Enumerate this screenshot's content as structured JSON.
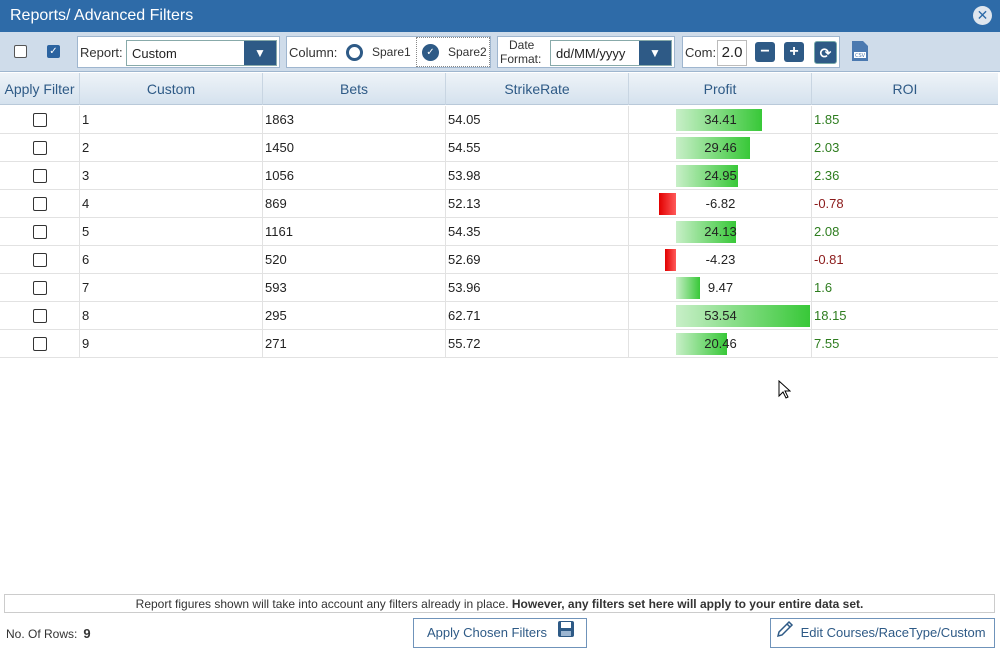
{
  "window": {
    "title": "Reports/ Advanced Filters"
  },
  "toolbar": {
    "report_label": "Report:",
    "report_value": "Custom",
    "column_label": "Column:",
    "spare1_label": "Spare1",
    "spare2_label": "Spare2",
    "date_label_1": "Date",
    "date_label_2": "Format:",
    "date_value": "dd/MM/yyyy",
    "com_label": "Com:",
    "com_value": "2.0",
    "selected_column": "Spare2"
  },
  "table": {
    "headers": [
      "Apply Filter",
      "Custom",
      "Bets",
      "StrikeRate",
      "Profit",
      "ROI"
    ],
    "rows": [
      {
        "custom": "1",
        "bets": "1863",
        "strike": "54.05",
        "profit": "34.41",
        "roi": "1.85"
      },
      {
        "custom": "2",
        "bets": "1450",
        "strike": "54.55",
        "profit": "29.46",
        "roi": "2.03"
      },
      {
        "custom": "3",
        "bets": "1056",
        "strike": "53.98",
        "profit": "24.95",
        "roi": "2.36"
      },
      {
        "custom": "4",
        "bets": "869",
        "strike": "52.13",
        "profit": "-6.82",
        "roi": "-0.78"
      },
      {
        "custom": "5",
        "bets": "1161",
        "strike": "54.35",
        "profit": "24.13",
        "roi": "2.08"
      },
      {
        "custom": "6",
        "bets": "520",
        "strike": "52.69",
        "profit": "-4.23",
        "roi": "-0.81"
      },
      {
        "custom": "7",
        "bets": "593",
        "strike": "53.96",
        "profit": "9.47",
        "roi": "1.6"
      },
      {
        "custom": "8",
        "bets": "295",
        "strike": "62.71",
        "profit": "53.54",
        "roi": "18.15"
      },
      {
        "custom": "9",
        "bets": "271",
        "strike": "55.72",
        "profit": "20.46",
        "roi": "7.55"
      }
    ]
  },
  "footer": {
    "note_normal": "Report figures shown will take into account any filters already in place. ",
    "note_bold": "However, any filters set here will apply to your entire data set.",
    "rows_label": "No. Of Rows:",
    "rows_value": "9",
    "apply_label": "Apply Chosen Filters",
    "edit_label": "Edit Courses/RaceType/Custom"
  },
  "colors": {
    "titlebar": "#2e6ba8",
    "accent": "#2e5a86",
    "positive": "#38c838",
    "negative": "#e20000"
  }
}
